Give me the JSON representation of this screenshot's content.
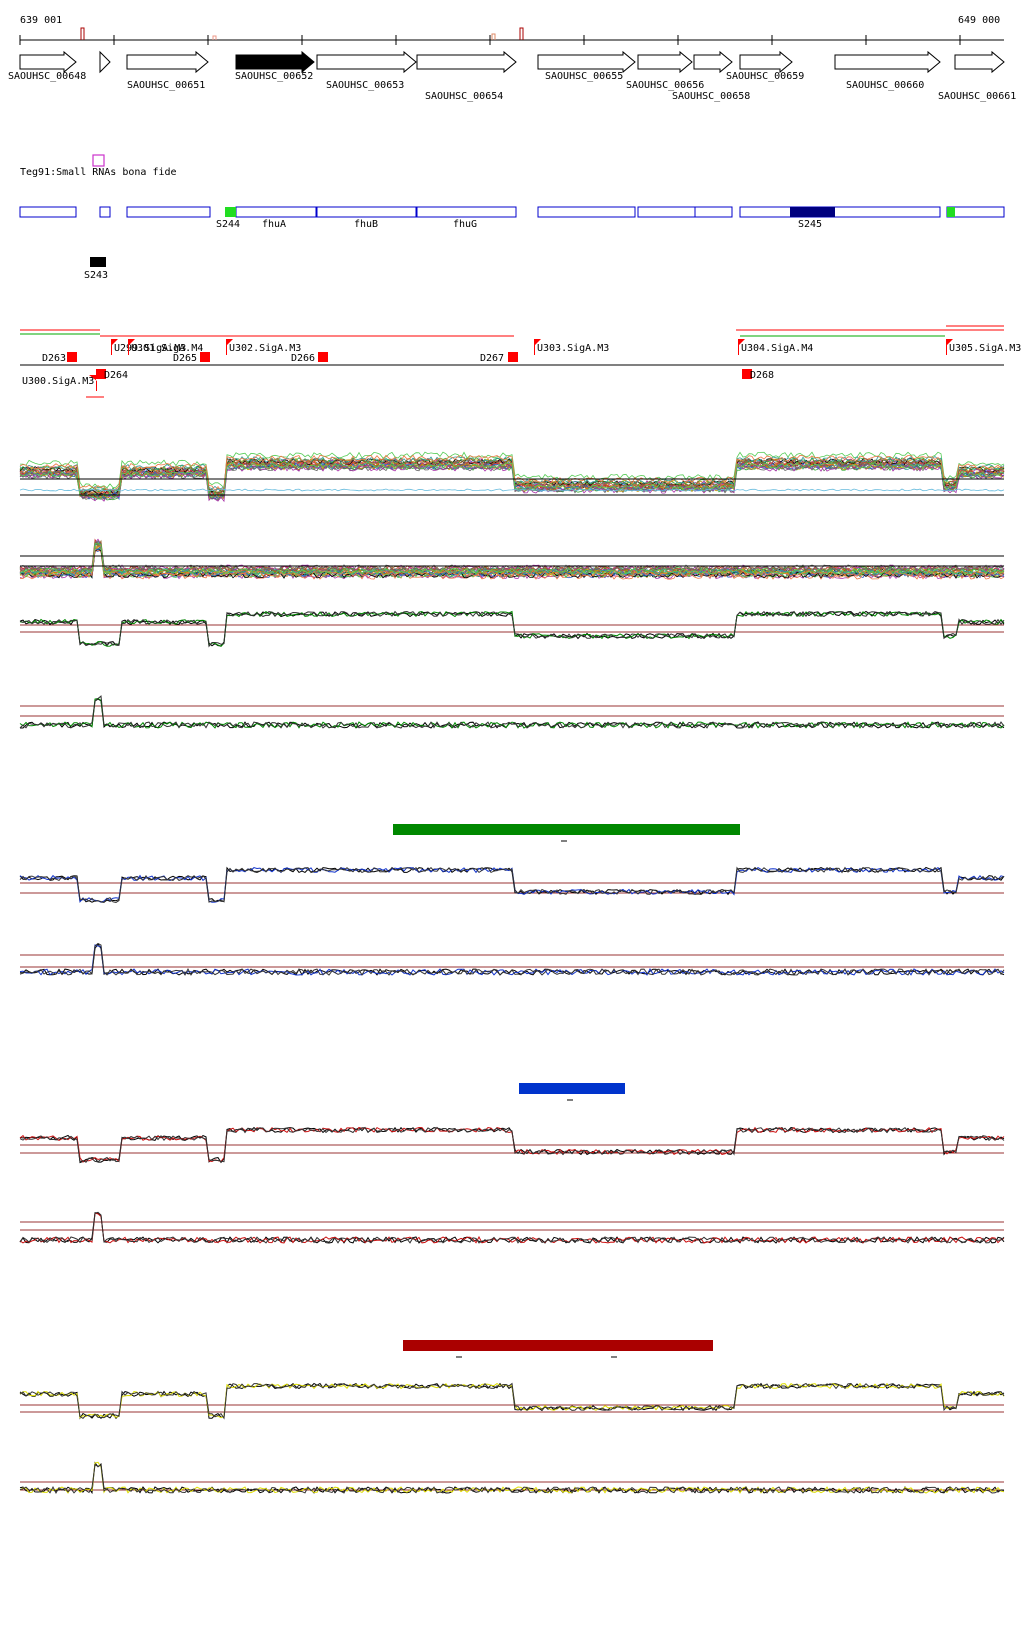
{
  "coordinates": {
    "start": "639 001",
    "end": "649 000"
  },
  "genes": [
    {
      "name": "SAOUHSC_00648",
      "strand": "+",
      "filled": false
    },
    {
      "name": "",
      "strand": "+",
      "filled": false
    },
    {
      "name": "SAOUHSC_00651",
      "strand": "+",
      "filled": false
    },
    {
      "name": "SAOUHSC_00652",
      "strand": "+",
      "filled": true
    },
    {
      "name": "SAOUHSC_00653",
      "strand": "+",
      "filled": false
    },
    {
      "name": "SAOUHSC_00654",
      "strand": "+",
      "filled": false
    },
    {
      "name": "SAOUHSC_00655",
      "strand": "+",
      "filled": false
    },
    {
      "name": "SAOUHSC_00656",
      "strand": "+",
      "filled": false
    },
    {
      "name": "SAOUHSC_00658",
      "strand": "+",
      "filled": false
    },
    {
      "name": "SAOUHSC_00659",
      "strand": "+",
      "filled": false
    },
    {
      "name": "SAOUHSC_00660",
      "strand": "+",
      "filled": false
    },
    {
      "name": "SAOUHSC_00661",
      "strand": "+",
      "filled": false
    }
  ],
  "teg91": {
    "label": "Teg91:Small RNAs bona fide"
  },
  "annotations": {
    "genes": [
      "fhuA",
      "fhuB",
      "fhuG"
    ],
    "srnas": [
      {
        "name": "S244",
        "color": "#22dd22"
      },
      {
        "name": "S245",
        "color": "#000080"
      },
      {
        "name": "S243",
        "color": "#000000"
      }
    ]
  },
  "promoters": [
    "U299.SigA.M3",
    "U300.SigA.M3",
    "U301.SigA.M4",
    "U302.SigA.M3",
    "U303.SigA.M3",
    "U304.SigA.M4",
    "U305.SigA.M3"
  ],
  "terminators": [
    "D263",
    "D264",
    "D265",
    "D266",
    "D267",
    "D268"
  ],
  "colors": {
    "gene_outline": "#000000",
    "gene_fill": "#000000",
    "annotation_box": "#0000cc",
    "marker": "#ff0000",
    "threshold_line": "#993333",
    "condition_bars": [
      "#008800",
      "#0033cc",
      "#aa0000"
    ],
    "trace_colors": [
      "#008800",
      "#1133cc",
      "#cc1111",
      "#dddd00"
    ]
  },
  "condition_bars": [
    {
      "color": "#008800",
      "tick": "-"
    },
    {
      "color": "#0033cc",
      "tick": "-"
    },
    {
      "color": "#aa0000",
      "tick": "- -"
    }
  ]
}
